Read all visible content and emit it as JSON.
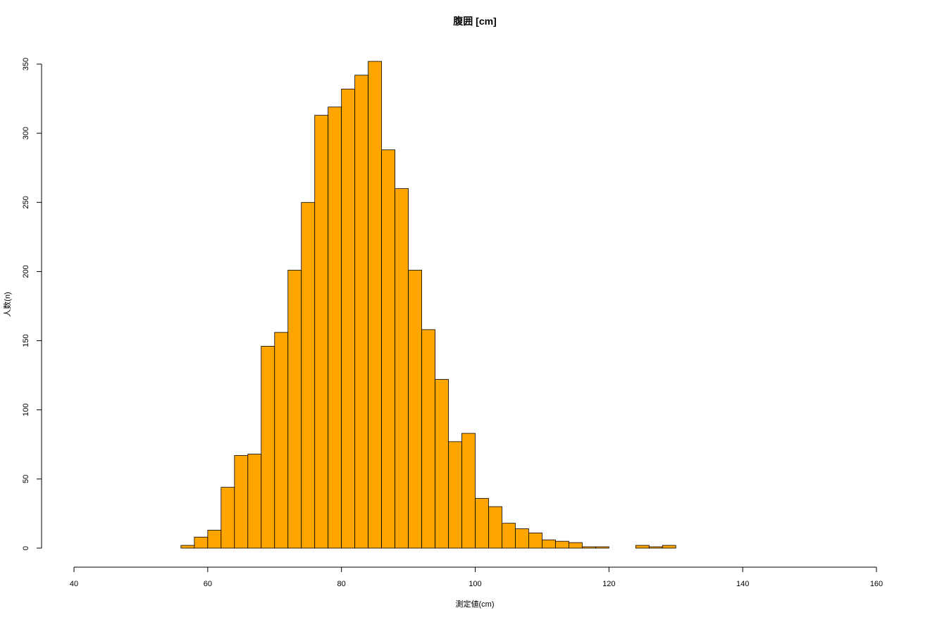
{
  "chart_data": {
    "type": "bar",
    "title": "腹囲 [cm]",
    "xlabel": "測定値(cm)",
    "ylabel": "人数(n)",
    "xlim": [
      40,
      160
    ],
    "ylim": [
      0,
      350
    ],
    "x_ticks": [
      40,
      60,
      80,
      100,
      120,
      140,
      160
    ],
    "y_ticks": [
      0,
      50,
      100,
      150,
      200,
      250,
      300,
      350
    ],
    "bin_width": 2,
    "bins": [
      {
        "start": 56,
        "end": 58,
        "count": 2
      },
      {
        "start": 58,
        "end": 60,
        "count": 8
      },
      {
        "start": 60,
        "end": 62,
        "count": 13
      },
      {
        "start": 62,
        "end": 64,
        "count": 44
      },
      {
        "start": 64,
        "end": 66,
        "count": 67
      },
      {
        "start": 66,
        "end": 68,
        "count": 68
      },
      {
        "start": 68,
        "end": 70,
        "count": 146
      },
      {
        "start": 70,
        "end": 72,
        "count": 156
      },
      {
        "start": 72,
        "end": 74,
        "count": 201
      },
      {
        "start": 74,
        "end": 76,
        "count": 250
      },
      {
        "start": 76,
        "end": 78,
        "count": 313
      },
      {
        "start": 78,
        "end": 80,
        "count": 319
      },
      {
        "start": 80,
        "end": 82,
        "count": 332
      },
      {
        "start": 82,
        "end": 84,
        "count": 342
      },
      {
        "start": 84,
        "end": 86,
        "count": 352
      },
      {
        "start": 86,
        "end": 88,
        "count": 288
      },
      {
        "start": 88,
        "end": 90,
        "count": 260
      },
      {
        "start": 90,
        "end": 92,
        "count": 201
      },
      {
        "start": 92,
        "end": 94,
        "count": 158
      },
      {
        "start": 94,
        "end": 96,
        "count": 122
      },
      {
        "start": 96,
        "end": 98,
        "count": 77
      },
      {
        "start": 98,
        "end": 100,
        "count": 83
      },
      {
        "start": 100,
        "end": 102,
        "count": 36
      },
      {
        "start": 102,
        "end": 104,
        "count": 30
      },
      {
        "start": 104,
        "end": 106,
        "count": 18
      },
      {
        "start": 106,
        "end": 108,
        "count": 14
      },
      {
        "start": 108,
        "end": 110,
        "count": 11
      },
      {
        "start": 110,
        "end": 112,
        "count": 6
      },
      {
        "start": 112,
        "end": 114,
        "count": 5
      },
      {
        "start": 114,
        "end": 116,
        "count": 4
      },
      {
        "start": 116,
        "end": 118,
        "count": 1
      },
      {
        "start": 118,
        "end": 120,
        "count": 1
      },
      {
        "start": 120,
        "end": 122,
        "count": 0
      },
      {
        "start": 122,
        "end": 124,
        "count": 0
      },
      {
        "start": 124,
        "end": 126,
        "count": 2
      },
      {
        "start": 126,
        "end": 128,
        "count": 1
      },
      {
        "start": 128,
        "end": 130,
        "count": 2
      }
    ],
    "bar_color": "#FFA500",
    "bar_edge_color": "#000000",
    "grid": false,
    "legend": "none"
  }
}
